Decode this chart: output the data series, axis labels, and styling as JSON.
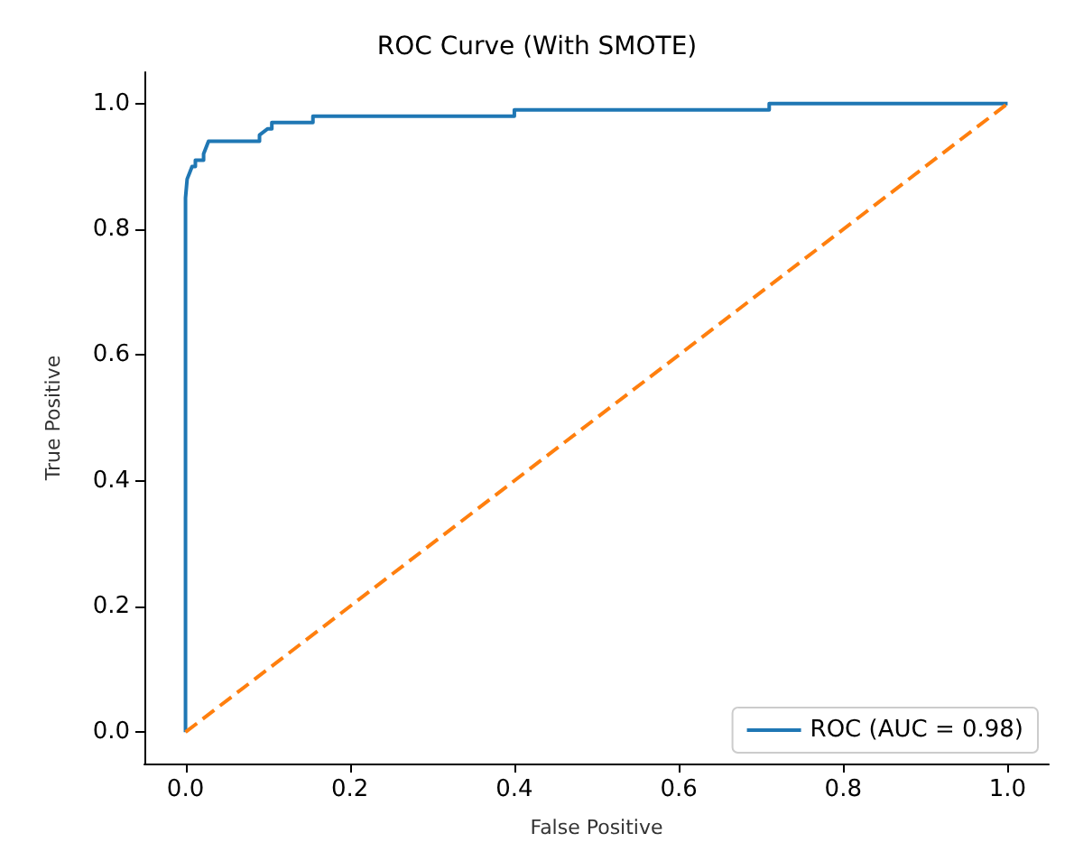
{
  "chart_data": {
    "type": "line",
    "title": "ROC Curve (With SMOTE)",
    "xlabel": "False Positive",
    "ylabel": "True Positive",
    "xlim": [
      -0.05,
      1.05
    ],
    "ylim": [
      -0.05,
      1.05
    ],
    "xticks": [
      {
        "value": 0,
        "label": "0.0"
      },
      0.2,
      0.4,
      0.6,
      0.8,
      {
        "value": 1,
        "label": "1.0"
      }
    ],
    "yticks": [
      {
        "value": 0,
        "label": "0.0"
      },
      0.2,
      0.4,
      0.6,
      0.8,
      {
        "value": 1,
        "label": "1.0"
      }
    ],
    "grid": false,
    "legend": "bottom right",
    "marker": "none",
    "series": [
      {
        "name": "ROC (AUC = 0.98)",
        "color": "#1f77b4",
        "line_style": "solid",
        "x": [
          0,
          0,
          0.002,
          0.005,
          0.008,
          0.012,
          0.012,
          0.022,
          0.022,
          0.028,
          0.09,
          0.09,
          0.1,
          0.105,
          0.105,
          0.155,
          0.155,
          0.4,
          0.4,
          0.71,
          0.71,
          1
        ],
        "values": [
          0,
          0.85,
          0.88,
          0.89,
          0.9,
          0.9,
          0.91,
          0.91,
          0.92,
          0.94,
          0.94,
          0.95,
          0.96,
          0.96,
          0.97,
          0.97,
          0.98,
          0.98,
          0.99,
          0.99,
          1,
          1
        ]
      },
      {
        "color": "#ff7f0e",
        "line_style": "dashed",
        "x": [
          0,
          1
        ],
        "values": [
          0,
          1
        ]
      }
    ]
  }
}
